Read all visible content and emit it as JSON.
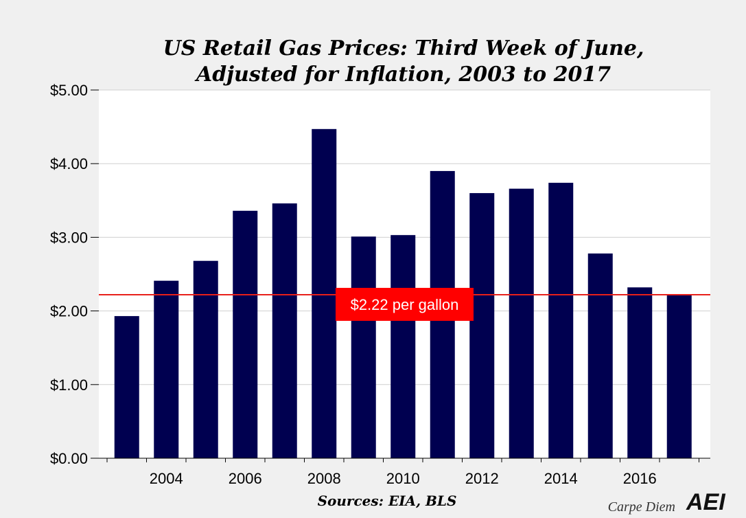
{
  "chart_data": {
    "type": "bar",
    "title_line1": "US Retail Gas Prices: Third Week of June,",
    "title_line2": "Adjusted for Inflation, 2003 to 2017",
    "x": [
      2003,
      2004,
      2005,
      2006,
      2007,
      2008,
      2009,
      2010,
      2011,
      2012,
      2013,
      2014,
      2015,
      2016,
      2017
    ],
    "values": [
      1.93,
      2.41,
      2.68,
      3.36,
      3.46,
      4.47,
      3.01,
      3.03,
      3.9,
      3.6,
      3.66,
      3.74,
      2.78,
      2.32,
      2.22
    ],
    "x_tick_labels": [
      "2004",
      "2006",
      "2008",
      "2010",
      "2012",
      "2014",
      "2016"
    ],
    "y_tick_labels": [
      "$0.00",
      "$1.00",
      "$2.00",
      "$3.00",
      "$4.00",
      "$5.00"
    ],
    "ylim": [
      0,
      5
    ],
    "reference_line": {
      "value": 2.22,
      "label": "$2.22 per gallon",
      "color": "#e8201a"
    },
    "bar_color": "#000050",
    "annotation_bg": "#ff0000",
    "grid": true,
    "source": "Sources: EIA, BLS"
  },
  "branding": {
    "blog": "Carpe Diem",
    "logo": "AEI"
  }
}
